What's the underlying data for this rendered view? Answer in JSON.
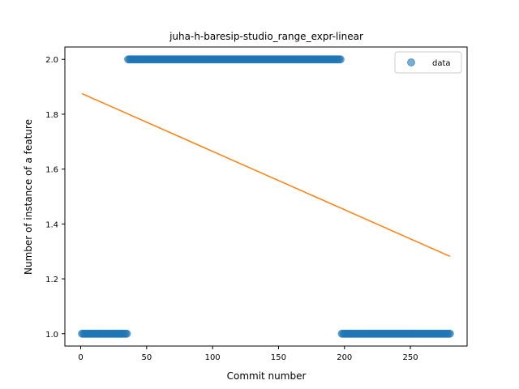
{
  "chart_data": {
    "type": "scatter",
    "title": "juha-h-baresip-studio_range_expr-linear",
    "xlabel": "Commit number",
    "ylabel": "Number of instance of a feature",
    "xlim": [
      -12,
      293
    ],
    "ylim": [
      0.955,
      2.045
    ],
    "xticks": [
      0,
      50,
      100,
      150,
      200,
      250
    ],
    "yticks": [
      1.0,
      1.2,
      1.4,
      1.6,
      1.8,
      2.0
    ],
    "xtick_labels": [
      "0",
      "50",
      "100",
      "150",
      "200",
      "250"
    ],
    "ytick_labels": [
      "1.0",
      "1.2",
      "1.4",
      "1.6",
      "1.8",
      "2.0"
    ],
    "legend": {
      "placement": "top-right",
      "entries": [
        "data"
      ]
    },
    "grid": false,
    "series": [
      {
        "name": "data",
        "kind": "scatter",
        "color": "#1f77b4",
        "segments": [
          {
            "x_start": 1,
            "x_end": 35,
            "y": 1
          },
          {
            "x_start": 36,
            "x_end": 197,
            "y": 2
          },
          {
            "x_start": 198,
            "x_end": 280,
            "y": 1
          }
        ]
      },
      {
        "kind": "line",
        "color": "#ff7f0e",
        "x": [
          1,
          280
        ],
        "y": [
          1.875,
          1.282
        ]
      }
    ]
  }
}
